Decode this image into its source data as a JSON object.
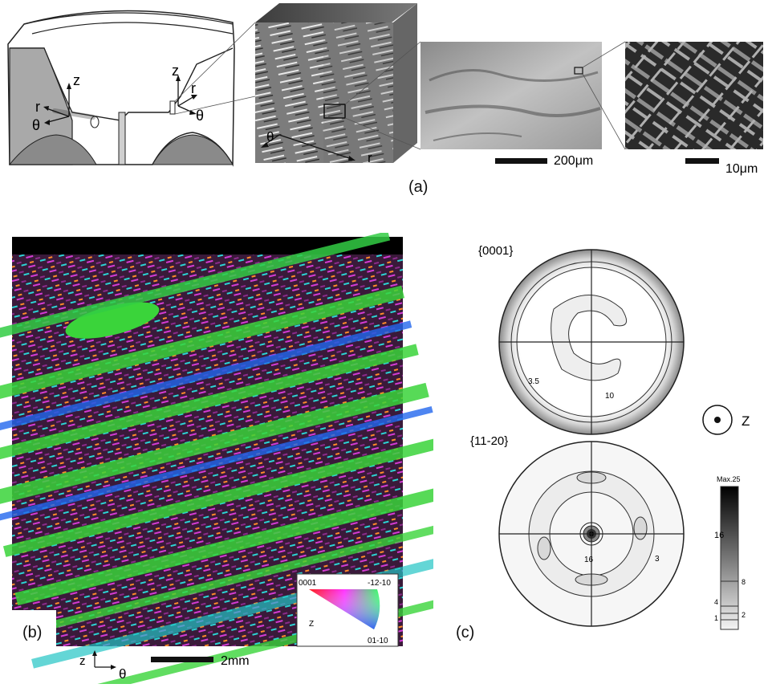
{
  "panel_a": {
    "label": "(a)",
    "axes_left": {
      "z": "z",
      "r": "r",
      "theta": "θ"
    },
    "axes_right": {
      "z": "z",
      "r": "r",
      "theta": "θ"
    },
    "cube_axes": {
      "theta": "θ",
      "r": "r"
    },
    "scale1": "200μm",
    "scale2": "10μm"
  },
  "panel_b": {
    "label": "(b)",
    "legend": {
      "top_left": "0001",
      "top_right": "-12-10",
      "bottom_right": "01-10",
      "axis": "Z"
    },
    "axes": {
      "z": "z",
      "theta": "θ"
    },
    "scale": "2mm"
  },
  "panel_c": {
    "label": "(c)",
    "pf1_title": "{0001}",
    "pf1_labels": {
      "a": "3.5",
      "b": "10"
    },
    "pf2_title": "{11-20}",
    "pf2_labels": {
      "a": "16",
      "b": "3"
    },
    "z_label": "Z",
    "colorbar": {
      "max": "Max.25",
      "t16": "16",
      "t8": "8",
      "t4": "4",
      "t2": "2",
      "t1": "1"
    }
  }
}
